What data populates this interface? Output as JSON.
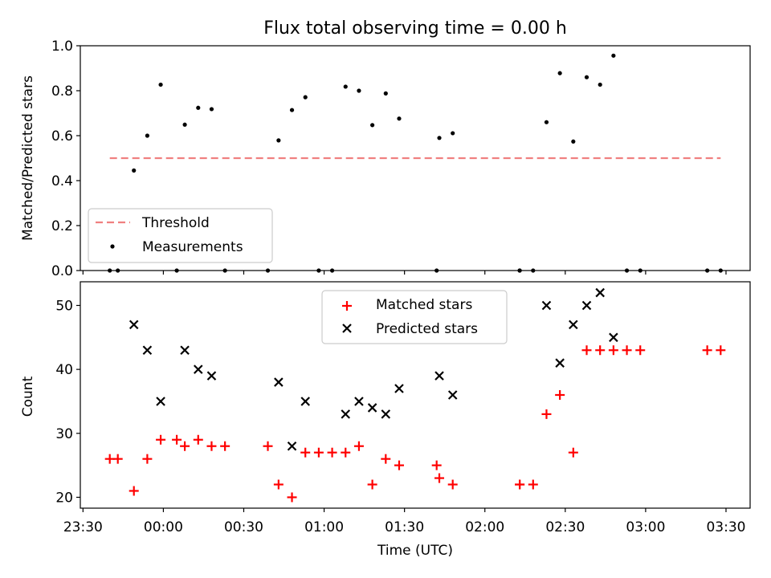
{
  "figure": {
    "title": "Flux total observing time = 0.00 h"
  },
  "chart_data": [
    {
      "type": "scatter",
      "ylabel": "Matched/Predicted stars",
      "ylim": [
        0,
        1.0
      ],
      "yticks": [
        "0.0",
        "0.2",
        "0.4",
        "0.6",
        "0.8",
        "1.0"
      ],
      "legend": {
        "placement": "lower-left",
        "entries": [
          "Threshold",
          "Measurements"
        ]
      },
      "threshold": {
        "name": "Threshold",
        "value": 0.5,
        "x_start": "23:40",
        "x_end": "03:28",
        "color": "#f08080",
        "style": "dashed"
      },
      "series": [
        {
          "name": "Measurements",
          "marker": "dot",
          "color": "#000000",
          "points": [
            [
              "23:40",
              0.0
            ],
            [
              "23:43",
              0.0
            ],
            [
              "23:49",
              0.445
            ],
            [
              "23:54",
              0.6
            ],
            [
              "23:59",
              0.827
            ],
            [
              "00:05",
              0.0
            ],
            [
              "00:08",
              0.649
            ],
            [
              "00:13",
              0.724
            ],
            [
              "00:18",
              0.718
            ],
            [
              "00:23",
              0.0
            ],
            [
              "00:39",
              0.0
            ],
            [
              "00:43",
              0.579
            ],
            [
              "00:48",
              0.714
            ],
            [
              "00:53",
              0.771
            ],
            [
              "00:58",
              0.0
            ],
            [
              "01:03",
              0.0
            ],
            [
              "01:08",
              0.818
            ],
            [
              "01:13",
              0.8
            ],
            [
              "01:18",
              0.647
            ],
            [
              "01:23",
              0.788
            ],
            [
              "01:28",
              0.676
            ],
            [
              "01:42",
              0.0
            ],
            [
              "01:43",
              0.59
            ],
            [
              "01:48",
              0.611
            ],
            [
              "02:13",
              0.0
            ],
            [
              "02:13",
              0.0
            ],
            [
              "02:18",
              0.0
            ],
            [
              "02:23",
              0.66
            ],
            [
              "02:28",
              0.878
            ],
            [
              "02:33",
              0.574
            ],
            [
              "02:38",
              0.86
            ],
            [
              "02:43",
              0.827
            ],
            [
              "02:48",
              0.956
            ],
            [
              "02:53",
              0.0
            ],
            [
              "02:58",
              0.0
            ],
            [
              "03:23",
              0.0
            ],
            [
              "03:28",
              0.0
            ]
          ]
        }
      ]
    },
    {
      "type": "scatter",
      "xlabel": "Time (UTC)",
      "ylabel": "Count",
      "ylim": [
        18.3,
        53.7
      ],
      "yticks": [
        "20",
        "30",
        "40",
        "50"
      ],
      "xlim": [
        "23:29",
        "03:39"
      ],
      "xticks": [
        "23:30",
        "00:00",
        "00:30",
        "01:00",
        "01:30",
        "02:00",
        "02:30",
        "03:00",
        "03:30"
      ],
      "legend": {
        "placement": "upper-center",
        "entries": [
          "Matched stars",
          "Predicted stars"
        ]
      },
      "series": [
        {
          "name": "Matched stars",
          "marker": "plus",
          "color": "#ff0000",
          "points": [
            [
              "23:40",
              26
            ],
            [
              "23:43",
              26
            ],
            [
              "23:49",
              21
            ],
            [
              "23:54",
              26
            ],
            [
              "23:59",
              29
            ],
            [
              "00:05",
              29
            ],
            [
              "00:08",
              28
            ],
            [
              "00:13",
              29
            ],
            [
              "00:18",
              28
            ],
            [
              "00:23",
              28
            ],
            [
              "00:39",
              28
            ],
            [
              "00:43",
              22
            ],
            [
              "00:48",
              20
            ],
            [
              "00:53",
              27
            ],
            [
              "00:58",
              27
            ],
            [
              "01:03",
              27
            ],
            [
              "01:08",
              27
            ],
            [
              "01:13",
              28
            ],
            [
              "01:18",
              22
            ],
            [
              "01:23",
              26
            ],
            [
              "01:28",
              25
            ],
            [
              "01:42",
              25
            ],
            [
              "01:43",
              23
            ],
            [
              "01:48",
              22
            ],
            [
              "02:13",
              22
            ],
            [
              "02:13",
              22
            ],
            [
              "02:18",
              22
            ],
            [
              "02:23",
              33
            ],
            [
              "02:28",
              36
            ],
            [
              "02:33",
              27
            ],
            [
              "02:38",
              43
            ],
            [
              "02:43",
              43
            ],
            [
              "02:48",
              43
            ],
            [
              "02:53",
              43
            ],
            [
              "02:58",
              43
            ],
            [
              "03:23",
              43
            ],
            [
              "03:28",
              43
            ]
          ]
        },
        {
          "name": "Predicted stars",
          "marker": "x",
          "color": "#000000",
          "points": [
            [
              "23:49",
              47
            ],
            [
              "23:54",
              43
            ],
            [
              "23:59",
              35
            ],
            [
              "00:08",
              43
            ],
            [
              "00:13",
              40
            ],
            [
              "00:18",
              39
            ],
            [
              "00:43",
              38
            ],
            [
              "00:48",
              28
            ],
            [
              "00:53",
              35
            ],
            [
              "01:08",
              33
            ],
            [
              "01:13",
              35
            ],
            [
              "01:18",
              34
            ],
            [
              "01:23",
              33
            ],
            [
              "01:28",
              37
            ],
            [
              "01:43",
              39
            ],
            [
              "01:48",
              36
            ],
            [
              "02:23",
              50
            ],
            [
              "02:28",
              41
            ],
            [
              "02:33",
              47
            ],
            [
              "02:38",
              50
            ],
            [
              "02:43",
              52
            ],
            [
              "02:48",
              45
            ]
          ]
        }
      ]
    }
  ]
}
